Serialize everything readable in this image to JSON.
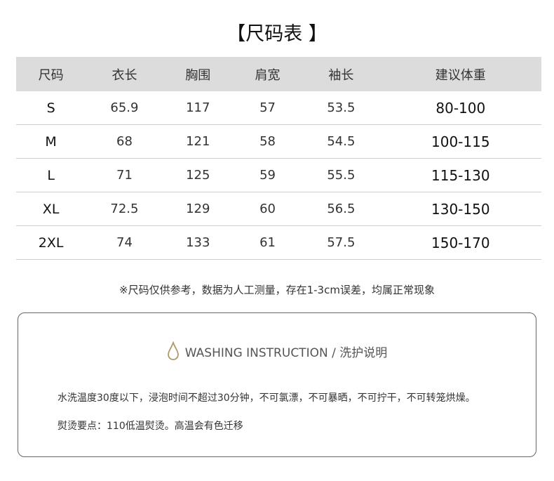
{
  "title": "【尺码表 】",
  "table": {
    "headers": [
      "尺码",
      "衣长",
      "胸围",
      "肩宽",
      "袖长",
      "建议体重"
    ],
    "rows": [
      [
        "S",
        "65.9",
        "117",
        "57",
        "53.5",
        "80-100"
      ],
      [
        "M",
        "68",
        "121",
        "58",
        "54.5",
        "100-115"
      ],
      [
        "L",
        "71",
        "125",
        "59",
        "55.5",
        "115-130"
      ],
      [
        "XL",
        "72.5",
        "129",
        "60",
        "56.5",
        "130-150"
      ],
      [
        "2XL",
        "74",
        "133",
        "61",
        "57.5",
        "150-170"
      ]
    ]
  },
  "note": "※尺码仅供参考，数据为人工测量，存在1-3cm误差，均属正常现象",
  "washing": {
    "icon": "water-drop-icon",
    "icon_color": "#b09a6a",
    "heading": "WASHING INSTRUCTION / 洗护说明",
    "line1": "水洗温度30度以下，浸泡时间不超过30分钟，不可氯漂，不可暴晒，不可拧干，不可转笼烘燥。",
    "line2": "熨烫要点：110低温熨烫。高温会有色迁移"
  }
}
